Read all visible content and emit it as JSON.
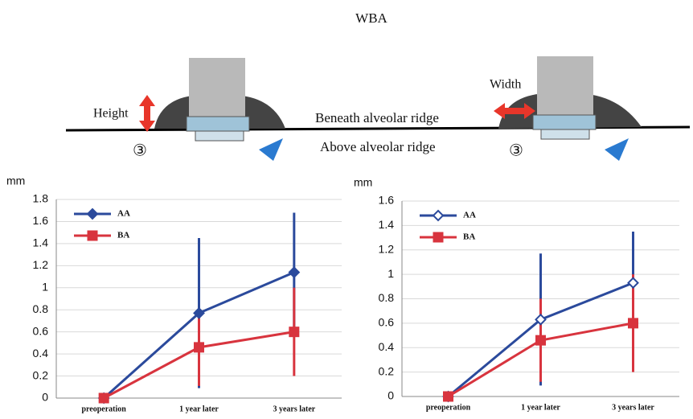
{
  "title": "WBA",
  "diagram": {
    "height_label": "Height",
    "width_label": "Width",
    "beneath_label": "Beneath alveolar ridge",
    "above_label": "Above alveolar ridge",
    "left_marker": "③",
    "right_marker": "③"
  },
  "chart_data": [
    {
      "type": "line",
      "y_label": "mm",
      "categories": [
        "preoperation",
        "1 year later",
        "3 years later"
      ],
      "ylim": [
        0,
        1.8
      ],
      "yticks": [
        0,
        0.2,
        0.4,
        0.6,
        0.8,
        1,
        1.2,
        1.4,
        1.6,
        1.8
      ],
      "grid": true,
      "legend": "upper left",
      "series": [
        {
          "name": "AA",
          "color": "#2b4a9c",
          "marker": "diamond",
          "filled": true,
          "values": [
            0,
            0.77,
            1.14
          ],
          "errors": [
            0,
            0.68,
            0.54
          ]
        },
        {
          "name": "BA",
          "color": "#d8343e",
          "marker": "square",
          "filled": true,
          "values": [
            0,
            0.46,
            0.6
          ],
          "errors": [
            0,
            0.35,
            0.4
          ]
        }
      ]
    },
    {
      "type": "line",
      "y_label": "mm",
      "categories": [
        "preoperation",
        "1 year later",
        "3 years later"
      ],
      "ylim": [
        0,
        1.6
      ],
      "yticks": [
        0,
        0.2,
        0.4,
        0.6,
        0.8,
        1,
        1.2,
        1.4,
        1.6
      ],
      "grid": true,
      "legend": "upper left",
      "series": [
        {
          "name": "AA",
          "color": "#2b4a9c",
          "marker": "diamond",
          "filled": false,
          "values": [
            0,
            0.63,
            0.93
          ],
          "errors": [
            0,
            0.54,
            0.42
          ]
        },
        {
          "name": "BA",
          "color": "#d8343e",
          "marker": "square",
          "filled": true,
          "values": [
            0,
            0.46,
            0.6
          ],
          "errors": [
            0,
            0.34,
            0.4
          ]
        }
      ]
    }
  ]
}
